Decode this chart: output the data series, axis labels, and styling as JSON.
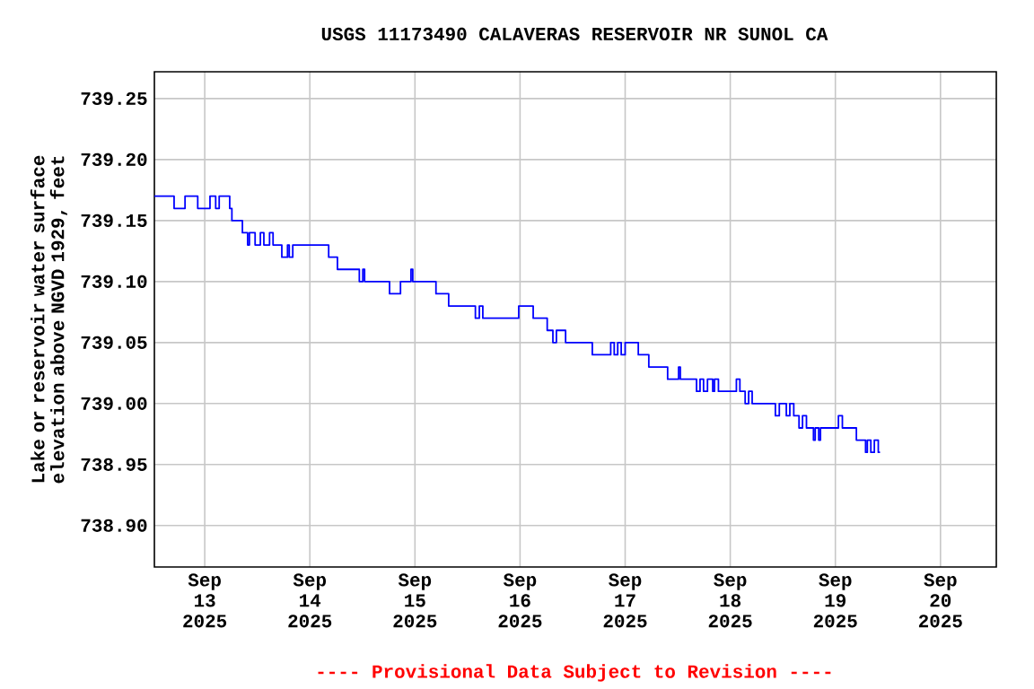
{
  "chart_data": {
    "type": "step",
    "title": "USGS 11173490 CALAVERAS RESERVOIR NR SUNOL CA",
    "ylabel": "Lake or reservoir water surface elevation above NGVD 1929, feet",
    "annotations": [
      "---- Provisional Data Subject to Revision ----"
    ],
    "grid": true,
    "xlim": [
      "2025-09-12T12:30",
      "2025-09-20T12:45"
    ],
    "ylim": [
      738.866,
      739.272
    ],
    "xticks": [
      {
        "value": "2025-09-13",
        "label": "Sep 13 2025"
      },
      {
        "value": "2025-09-14",
        "label": "Sep 14 2025"
      },
      {
        "value": "2025-09-15",
        "label": "Sep 15 2025"
      },
      {
        "value": "2025-09-16",
        "label": "Sep 16 2025"
      },
      {
        "value": "2025-09-17",
        "label": "Sep 17 2025"
      },
      {
        "value": "2025-09-18",
        "label": "Sep 18 2025"
      },
      {
        "value": "2025-09-19",
        "label": "Sep 19 2025"
      },
      {
        "value": "2025-09-20",
        "label": "Sep 20 2025"
      }
    ],
    "yticks": [
      {
        "value": 738.9,
        "label": "738.90"
      },
      {
        "value": 738.95,
        "label": "738.95"
      },
      {
        "value": 739.0,
        "label": "739.00"
      },
      {
        "value": 739.05,
        "label": "739.05"
      },
      {
        "value": 739.1,
        "label": "739.10"
      },
      {
        "value": 739.15,
        "label": "739.15"
      },
      {
        "value": 739.2,
        "label": "739.20"
      },
      {
        "value": 739.25,
        "label": "739.25"
      }
    ],
    "x": [
      "2025-09-12T12:30",
      "2025-09-12T17:00",
      "2025-09-12T19:30",
      "2025-09-12T22:24",
      "2025-09-13T01:12",
      "2025-09-13T02:30",
      "2025-09-13T03:18",
      "2025-09-13T05:42",
      "2025-09-13T06:12",
      "2025-09-13T08:36",
      "2025-09-13T09:48",
      "2025-09-13T10:12",
      "2025-09-13T11:30",
      "2025-09-13T12:42",
      "2025-09-13T13:30",
      "2025-09-13T14:48",
      "2025-09-13T15:36",
      "2025-09-13T17:36",
      "2025-09-13T18:54",
      "2025-09-13T19:18",
      "2025-09-13T20:06",
      "2025-09-14T04:18",
      "2025-09-14T06:18",
      "2025-09-14T11:18",
      "2025-09-14T12:06",
      "2025-09-14T12:30",
      "2025-09-14T18:12",
      "2025-09-14T20:42",
      "2025-09-14T23:06",
      "2025-09-14T23:30",
      "2025-09-15T04:48",
      "2025-09-15T07:42",
      "2025-09-15T13:48",
      "2025-09-15T14:42",
      "2025-09-15T15:30",
      "2025-09-15T23:42",
      "2025-09-16T03:00",
      "2025-09-16T06:12",
      "2025-09-16T07:30",
      "2025-09-16T08:18",
      "2025-09-16T10:24",
      "2025-09-16T16:30",
      "2025-09-16T20:42",
      "2025-09-16T21:30",
      "2025-09-16T22:18",
      "2025-09-16T23:06",
      "2025-09-17T00:00",
      "2025-09-17T03:00",
      "2025-09-17T05:24",
      "2025-09-17T09:42",
      "2025-09-17T12:12",
      "2025-09-17T12:36",
      "2025-09-17T16:18",
      "2025-09-17T17:06",
      "2025-09-17T17:54",
      "2025-09-17T18:48",
      "2025-09-17T20:00",
      "2025-09-17T20:24",
      "2025-09-17T21:18",
      "2025-09-18T01:24",
      "2025-09-18T02:12",
      "2025-09-18T03:24",
      "2025-09-18T04:12",
      "2025-09-18T05:00",
      "2025-09-18T10:18",
      "2025-09-18T11:12",
      "2025-09-18T12:48",
      "2025-09-18T13:36",
      "2025-09-18T14:30",
      "2025-09-18T15:42",
      "2025-09-18T16:30",
      "2025-09-18T17:24",
      "2025-09-18T19:00",
      "2025-09-18T19:24",
      "2025-09-18T20:12",
      "2025-09-18T20:36",
      "2025-09-19T00:42",
      "2025-09-19T01:36",
      "2025-09-19T04:48",
      "2025-09-19T06:54",
      "2025-09-19T07:18",
      "2025-09-19T08:06",
      "2025-09-19T08:54",
      "2025-09-19T09:48",
      "2025-09-19T10:12"
    ],
    "series": [
      {
        "color": "#0000ff",
        "values": [
          739.17,
          739.16,
          739.17,
          739.16,
          739.17,
          739.16,
          739.17,
          739.16,
          739.15,
          739.14,
          739.13,
          739.14,
          739.13,
          739.14,
          739.13,
          739.14,
          739.13,
          739.12,
          739.13,
          739.12,
          739.13,
          739.12,
          739.11,
          739.1,
          739.11,
          739.1,
          739.09,
          739.1,
          739.11,
          739.1,
          739.09,
          739.08,
          739.07,
          739.08,
          739.07,
          739.08,
          739.07,
          739.06,
          739.05,
          739.06,
          739.05,
          739.04,
          739.05,
          739.04,
          739.05,
          739.04,
          739.05,
          739.04,
          739.03,
          739.02,
          739.03,
          739.02,
          739.01,
          739.02,
          739.01,
          739.02,
          739.01,
          739.02,
          739.01,
          739.02,
          739.01,
          739.0,
          739.01,
          739.0,
          738.99,
          739.0,
          738.99,
          739.0,
          738.99,
          738.98,
          738.99,
          738.98,
          738.97,
          738.98,
          738.97,
          738.98,
          738.99,
          738.98,
          738.97,
          738.96,
          738.97,
          738.96,
          738.97,
          738.96,
          738.96
        ]
      }
    ]
  }
}
